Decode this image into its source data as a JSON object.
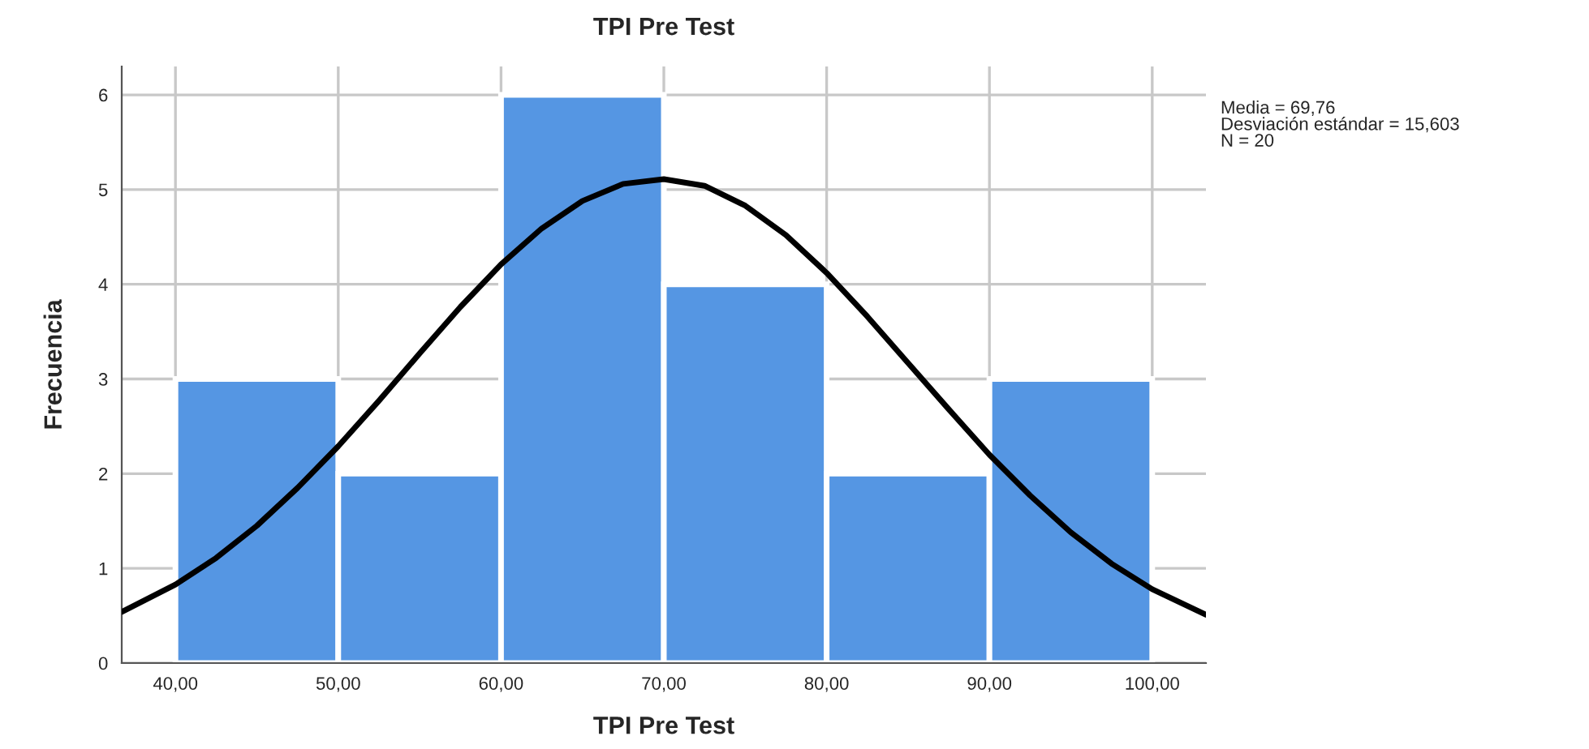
{
  "chart_data": {
    "type": "histogram",
    "title": "TPI Pre Test",
    "xlabel": "TPI Pre Test",
    "ylabel": "Frecuencia",
    "bins": [
      40,
      50,
      60,
      70,
      80,
      90,
      100
    ],
    "series": [
      {
        "color": "#5596e3",
        "values": [
          3,
          2,
          6,
          4,
          2,
          3
        ]
      },
      {
        "type": "line",
        "color": "#000000",
        "x": [
          36.7,
          40,
          42.5,
          45,
          47.5,
          50,
          52.5,
          55,
          57.5,
          60,
          62.5,
          65,
          67.5,
          70,
          72.5,
          75,
          77.5,
          80,
          82.5,
          85,
          87.5,
          90,
          92.5,
          95,
          97.5,
          100,
          103.3
        ],
        "values": [
          0.54,
          0.83,
          1.11,
          1.45,
          1.85,
          2.29,
          2.77,
          3.27,
          3.76,
          4.21,
          4.59,
          4.88,
          5.06,
          5.11,
          5.04,
          4.83,
          4.52,
          4.12,
          3.66,
          3.17,
          2.68,
          2.2,
          1.77,
          1.38,
          1.05,
          0.78,
          0.51
        ]
      }
    ],
    "xlim": [
      36.7,
      103.3
    ],
    "ylim": [
      0,
      6.3
    ],
    "xticks": [
      {
        "value": 40,
        "label": "40,00"
      },
      {
        "value": 50,
        "label": "50,00"
      },
      {
        "value": 60,
        "label": "60,00"
      },
      {
        "value": 70,
        "label": "70,00"
      },
      {
        "value": 80,
        "label": "80,00"
      },
      {
        "value": 90,
        "label": "90,00"
      },
      {
        "value": 100,
        "label": "100,00"
      }
    ],
    "yticks": [
      0,
      1,
      2,
      3,
      4,
      5,
      6
    ],
    "grid": true,
    "legend": false,
    "annotations": [
      "Media = 69,76",
      "Desviación estándar = 15,603",
      "N = 20"
    ]
  }
}
